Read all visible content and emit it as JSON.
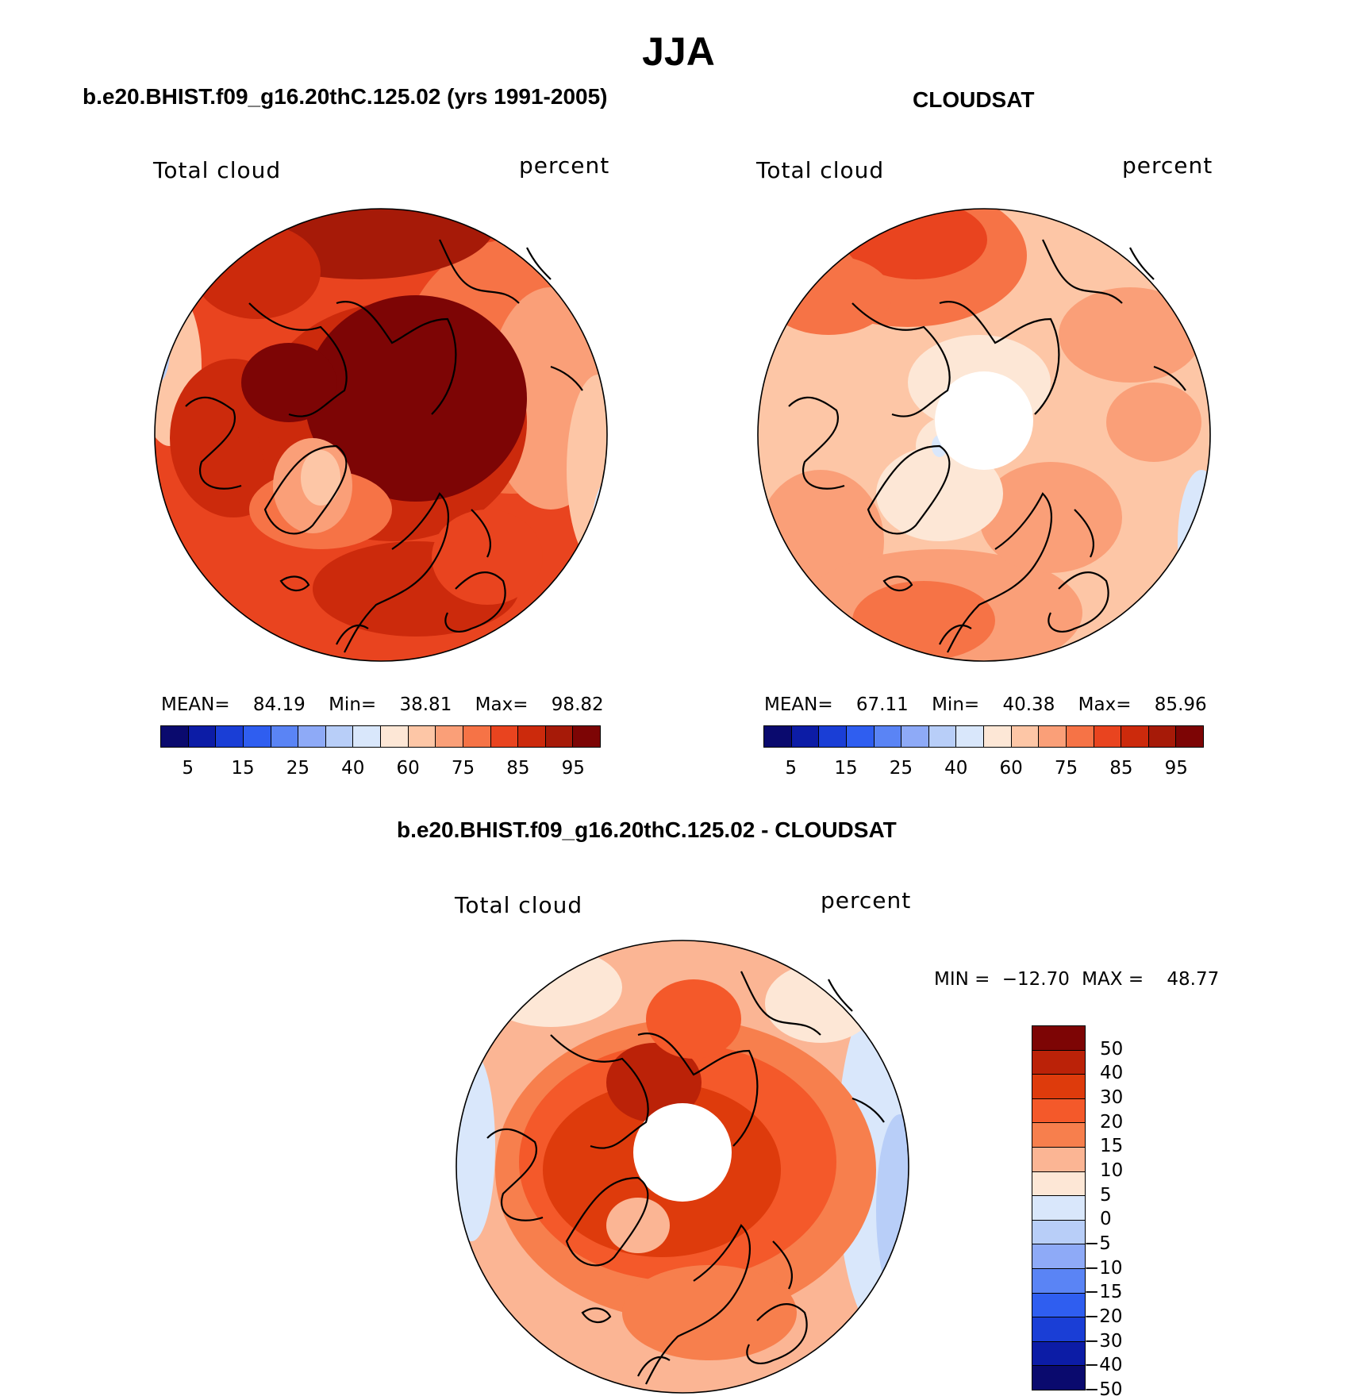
{
  "title": "JJA",
  "panels": [
    {
      "id": "model",
      "title": "b.e20.BHIST.f09_g16.20thC.125.02 (yrs 1991-2005)",
      "left_label": "Total cloud",
      "right_label": "percent",
      "stats": {
        "mean_label": "MEAN=",
        "mean": "84.19",
        "min_label": "Min=",
        "min": "38.81",
        "max_label": "Max=",
        "max": "98.82"
      }
    },
    {
      "id": "obs",
      "title": "CLOUDSAT",
      "left_label": "Total cloud",
      "right_label": "percent",
      "stats": {
        "mean_label": "MEAN=",
        "mean": "67.11",
        "min_label": "Min=",
        "min": "40.38",
        "max_label": "Max=",
        "max": "85.96"
      }
    },
    {
      "id": "diff",
      "title": "b.e20.BHIST.f09_g16.20thC.125.02 - CLOUDSAT",
      "left_label": "Total cloud",
      "right_label": "percent",
      "stats": {
        "min_label": "MIN =",
        "min": "−12.70",
        "max_label": "MAX =",
        "max": "48.77"
      }
    }
  ],
  "colorbar_abs": {
    "colors": [
      "#0a0a6e",
      "#0c1ca6",
      "#1a3ed6",
      "#2f5ef0",
      "#5a84f5",
      "#8eaaf7",
      "#b8cef8",
      "#d9e7fb",
      "#fde7d6",
      "#fdc6a6",
      "#fa9f78",
      "#f67346",
      "#e9441f",
      "#cc2a0c",
      "#a61a08",
      "#7d0505"
    ],
    "ticks": [
      "5",
      "15",
      "25",
      "40",
      "60",
      "75",
      "85",
      "95"
    ]
  },
  "colorbar_diff": {
    "colors": [
      "#7d0505",
      "#bb2208",
      "#de3b0c",
      "#f4592a",
      "#f77f4d",
      "#fbb594",
      "#fde7d6",
      "#d9e7fb",
      "#b8cef8",
      "#8eaaf7",
      "#5a84f5",
      "#2f5ef0",
      "#1a3ed6",
      "#0c1ca6",
      "#0a0a6e"
    ],
    "ticks": [
      "50",
      "40",
      "30",
      "20",
      "15",
      "10",
      "5",
      "0",
      "−5",
      "−10",
      "−15",
      "−20",
      "−30",
      "−40",
      "−50"
    ]
  },
  "chart_data": [
    {
      "type": "heatmap",
      "title": "b.e20.BHIST.f09_g16.20thC.125.02 (yrs 1991-2005)",
      "variable": "Total cloud",
      "units": "percent",
      "projection": "north polar stereographic",
      "mean": 84.19,
      "min": 38.81,
      "max": 98.82,
      "levels": [
        5,
        10,
        15,
        20,
        25,
        30,
        40,
        50,
        60,
        70,
        75,
        80,
        85,
        90,
        95
      ],
      "colors": [
        "#0a0a6e",
        "#0c1ca6",
        "#1a3ed6",
        "#2f5ef0",
        "#5a84f5",
        "#8eaaf7",
        "#b8cef8",
        "#d9e7fb",
        "#fde7d6",
        "#fdc6a6",
        "#fa9f78",
        "#f67346",
        "#e9441f",
        "#cc2a0c",
        "#a61a08",
        "#7d0505"
      ]
    },
    {
      "type": "heatmap",
      "title": "CLOUDSAT",
      "variable": "Total cloud",
      "units": "percent",
      "projection": "north polar stereographic",
      "mean": 67.11,
      "min": 40.38,
      "max": 85.96,
      "levels": [
        5,
        10,
        15,
        20,
        25,
        30,
        40,
        50,
        60,
        70,
        75,
        80,
        85,
        90,
        95
      ],
      "colors": [
        "#0a0a6e",
        "#0c1ca6",
        "#1a3ed6",
        "#2f5ef0",
        "#5a84f5",
        "#8eaaf7",
        "#b8cef8",
        "#d9e7fb",
        "#fde7d6",
        "#fdc6a6",
        "#fa9f78",
        "#f67346",
        "#e9441f",
        "#cc2a0c",
        "#a61a08",
        "#7d0505"
      ]
    },
    {
      "type": "heatmap",
      "title": "b.e20.BHIST.f09_g16.20thC.125.02 - CLOUDSAT",
      "variable": "Total cloud",
      "units": "percent",
      "projection": "north polar stereographic",
      "min": -12.7,
      "max": 48.77,
      "levels": [
        50,
        40,
        30,
        20,
        15,
        10,
        5,
        0,
        -5,
        -10,
        -15,
        -20,
        -30,
        -40,
        -50
      ],
      "colors": [
        "#7d0505",
        "#bb2208",
        "#de3b0c",
        "#f4592a",
        "#f77f4d",
        "#fbb594",
        "#fde7d6",
        "#d9e7fb",
        "#b8cef8",
        "#8eaaf7",
        "#5a84f5",
        "#2f5ef0",
        "#1a3ed6",
        "#0c1ca6",
        "#0a0a6e"
      ]
    }
  ]
}
